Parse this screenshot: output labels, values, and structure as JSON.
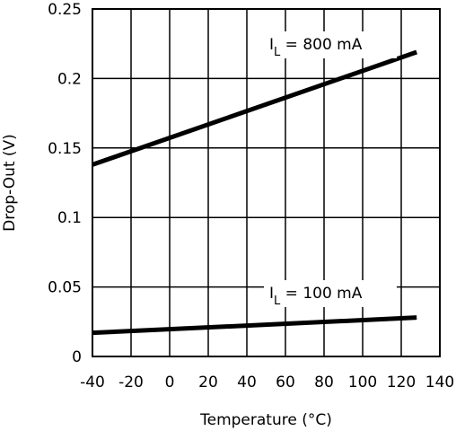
{
  "chart_data": {
    "type": "line",
    "title": "",
    "xlabel": "Temperature (°C)",
    "ylabel": "Drop-Out (V)",
    "xlim": [
      -40,
      140
    ],
    "ylim": [
      0,
      0.25
    ],
    "xticks": [
      -40,
      -20,
      0,
      20,
      40,
      60,
      80,
      100,
      120,
      140
    ],
    "xtick_labels": [
      "-40",
      "-20",
      "0",
      "20",
      "40",
      "60",
      "80",
      "100",
      "120",
      "140"
    ],
    "yticks": [
      0,
      0.05,
      0.1,
      0.15,
      0.2,
      0.25
    ],
    "ytick_labels": [
      "0",
      "0.05",
      "0.1",
      "0.15",
      "0.2",
      "0.25"
    ],
    "grid": true,
    "legend": "none",
    "series": [
      {
        "name": "IL = 800 mA",
        "label_main": "I",
        "label_sub": "L",
        "label_rest": "  =  800 mA",
        "x": [
          -40,
          128
        ],
        "y": [
          0.138,
          0.219
        ]
      },
      {
        "name": "IL = 100 mA",
        "label_main": "I",
        "label_sub": "L",
        "label_rest": "  =  100 mA",
        "x": [
          -40,
          128
        ],
        "y": [
          0.017,
          0.028
        ]
      }
    ],
    "line_color": "#000000",
    "grid_color": "#000000"
  }
}
